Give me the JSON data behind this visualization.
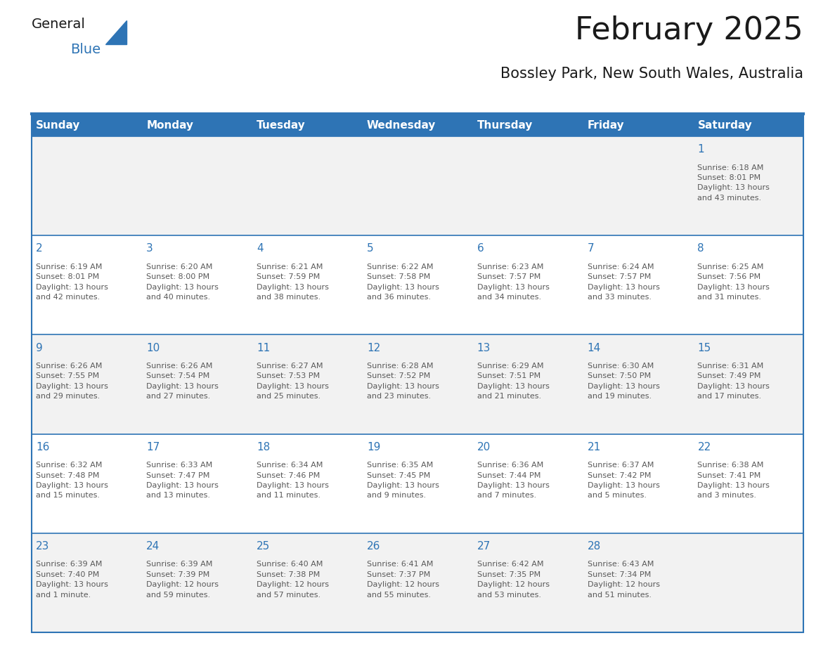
{
  "title": "February 2025",
  "subtitle": "Bossley Park, New South Wales, Australia",
  "header_bg": "#2E74B5",
  "header_text": "#FFFFFF",
  "row_bg_odd": "#F2F2F2",
  "row_bg_even": "#FFFFFF",
  "day_number_color": "#2E74B5",
  "text_color": "#595959",
  "border_color": "#2E74B5",
  "logo_general_color": "#1A1A1A",
  "logo_blue_color": "#2E74B5",
  "logo_triangle_color": "#2E74B5",
  "days_of_week": [
    "Sunday",
    "Monday",
    "Tuesday",
    "Wednesday",
    "Thursday",
    "Friday",
    "Saturday"
  ],
  "weeks": [
    [
      {
        "day": null,
        "info": null
      },
      {
        "day": null,
        "info": null
      },
      {
        "day": null,
        "info": null
      },
      {
        "day": null,
        "info": null
      },
      {
        "day": null,
        "info": null
      },
      {
        "day": null,
        "info": null
      },
      {
        "day": 1,
        "info": "Sunrise: 6:18 AM\nSunset: 8:01 PM\nDaylight: 13 hours\nand 43 minutes."
      }
    ],
    [
      {
        "day": 2,
        "info": "Sunrise: 6:19 AM\nSunset: 8:01 PM\nDaylight: 13 hours\nand 42 minutes."
      },
      {
        "day": 3,
        "info": "Sunrise: 6:20 AM\nSunset: 8:00 PM\nDaylight: 13 hours\nand 40 minutes."
      },
      {
        "day": 4,
        "info": "Sunrise: 6:21 AM\nSunset: 7:59 PM\nDaylight: 13 hours\nand 38 minutes."
      },
      {
        "day": 5,
        "info": "Sunrise: 6:22 AM\nSunset: 7:58 PM\nDaylight: 13 hours\nand 36 minutes."
      },
      {
        "day": 6,
        "info": "Sunrise: 6:23 AM\nSunset: 7:57 PM\nDaylight: 13 hours\nand 34 minutes."
      },
      {
        "day": 7,
        "info": "Sunrise: 6:24 AM\nSunset: 7:57 PM\nDaylight: 13 hours\nand 33 minutes."
      },
      {
        "day": 8,
        "info": "Sunrise: 6:25 AM\nSunset: 7:56 PM\nDaylight: 13 hours\nand 31 minutes."
      }
    ],
    [
      {
        "day": 9,
        "info": "Sunrise: 6:26 AM\nSunset: 7:55 PM\nDaylight: 13 hours\nand 29 minutes."
      },
      {
        "day": 10,
        "info": "Sunrise: 6:26 AM\nSunset: 7:54 PM\nDaylight: 13 hours\nand 27 minutes."
      },
      {
        "day": 11,
        "info": "Sunrise: 6:27 AM\nSunset: 7:53 PM\nDaylight: 13 hours\nand 25 minutes."
      },
      {
        "day": 12,
        "info": "Sunrise: 6:28 AM\nSunset: 7:52 PM\nDaylight: 13 hours\nand 23 minutes."
      },
      {
        "day": 13,
        "info": "Sunrise: 6:29 AM\nSunset: 7:51 PM\nDaylight: 13 hours\nand 21 minutes."
      },
      {
        "day": 14,
        "info": "Sunrise: 6:30 AM\nSunset: 7:50 PM\nDaylight: 13 hours\nand 19 minutes."
      },
      {
        "day": 15,
        "info": "Sunrise: 6:31 AM\nSunset: 7:49 PM\nDaylight: 13 hours\nand 17 minutes."
      }
    ],
    [
      {
        "day": 16,
        "info": "Sunrise: 6:32 AM\nSunset: 7:48 PM\nDaylight: 13 hours\nand 15 minutes."
      },
      {
        "day": 17,
        "info": "Sunrise: 6:33 AM\nSunset: 7:47 PM\nDaylight: 13 hours\nand 13 minutes."
      },
      {
        "day": 18,
        "info": "Sunrise: 6:34 AM\nSunset: 7:46 PM\nDaylight: 13 hours\nand 11 minutes."
      },
      {
        "day": 19,
        "info": "Sunrise: 6:35 AM\nSunset: 7:45 PM\nDaylight: 13 hours\nand 9 minutes."
      },
      {
        "day": 20,
        "info": "Sunrise: 6:36 AM\nSunset: 7:44 PM\nDaylight: 13 hours\nand 7 minutes."
      },
      {
        "day": 21,
        "info": "Sunrise: 6:37 AM\nSunset: 7:42 PM\nDaylight: 13 hours\nand 5 minutes."
      },
      {
        "day": 22,
        "info": "Sunrise: 6:38 AM\nSunset: 7:41 PM\nDaylight: 13 hours\nand 3 minutes."
      }
    ],
    [
      {
        "day": 23,
        "info": "Sunrise: 6:39 AM\nSunset: 7:40 PM\nDaylight: 13 hours\nand 1 minute."
      },
      {
        "day": 24,
        "info": "Sunrise: 6:39 AM\nSunset: 7:39 PM\nDaylight: 12 hours\nand 59 minutes."
      },
      {
        "day": 25,
        "info": "Sunrise: 6:40 AM\nSunset: 7:38 PM\nDaylight: 12 hours\nand 57 minutes."
      },
      {
        "day": 26,
        "info": "Sunrise: 6:41 AM\nSunset: 7:37 PM\nDaylight: 12 hours\nand 55 minutes."
      },
      {
        "day": 27,
        "info": "Sunrise: 6:42 AM\nSunset: 7:35 PM\nDaylight: 12 hours\nand 53 minutes."
      },
      {
        "day": 28,
        "info": "Sunrise: 6:43 AM\nSunset: 7:34 PM\nDaylight: 12 hours\nand 51 minutes."
      },
      {
        "day": null,
        "info": null
      }
    ]
  ],
  "figsize": [
    11.88,
    9.18
  ],
  "dpi": 100
}
